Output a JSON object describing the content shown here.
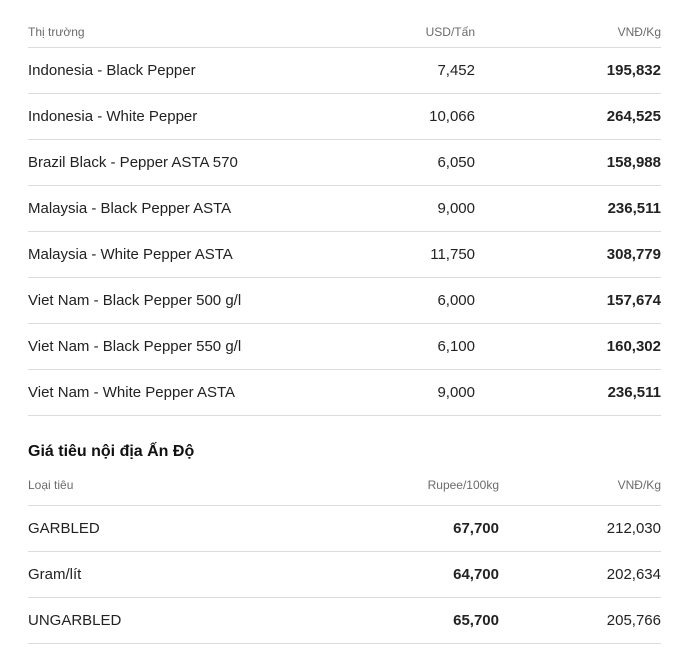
{
  "table1": {
    "headers": [
      "Thị trường",
      "USD/Tấn",
      "VNĐ/Kg"
    ],
    "rows": [
      [
        "Indonesia - Black Pepper",
        "7,452",
        "195,832"
      ],
      [
        "Indonesia - White Pepper",
        "10,066",
        "264,525"
      ],
      [
        "Brazil Black - Pepper ASTA 570",
        "6,050",
        "158,988"
      ],
      [
        "Malaysia - Black Pepper ASTA",
        "9,000",
        "236,511"
      ],
      [
        "Malaysia - White Pepper ASTA",
        "11,750",
        "308,779"
      ],
      [
        "Viet Nam - Black Pepper 500 g/l",
        "6,000",
        "157,674"
      ],
      [
        "Viet Nam - Black Pepper 550 g/l",
        "6,100",
        "160,302"
      ],
      [
        "Viet Nam - White Pepper ASTA",
        "9,000",
        "236,511"
      ]
    ]
  },
  "section2": {
    "title": "Giá tiêu nội địa Ấn Độ",
    "headers": [
      "Loại tiêu",
      "Rupee/100kg",
      "VNĐ/Kg"
    ],
    "rows": [
      [
        "GARBLED",
        "67,700",
        "212,030"
      ],
      [
        "Gram/lít",
        "64,700",
        "202,634"
      ],
      [
        "UNGARBLED",
        "65,700",
        "205,766"
      ]
    ]
  }
}
